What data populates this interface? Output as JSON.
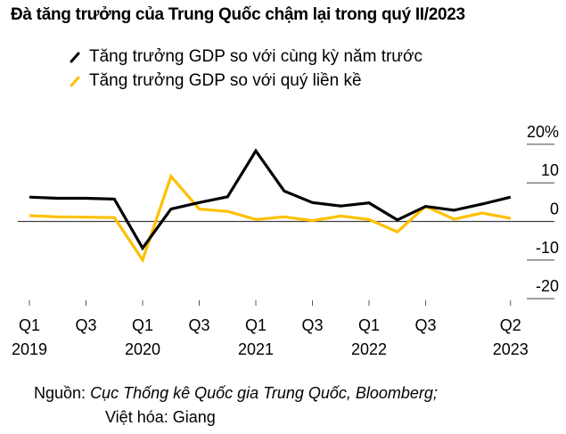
{
  "colors": {
    "yoy": "#000000",
    "qoq": "#FFC000",
    "zero_line": "#404040",
    "grid_tick": "#808080"
  },
  "footer": {
    "source_label": "Nguồn:",
    "source_text": "Cục Thống kê Quốc gia Trung Quốc, Bloomberg;",
    "credit": "Việt hóa: Giang"
  },
  "chart_data": {
    "type": "line",
    "title": "Đà tăng trưởng của Trung Quốc chậm lại trong quý II/2023",
    "xlabel": "",
    "ylabel": "",
    "ylim": [
      -20,
      20
    ],
    "yticks": [
      20,
      10,
      0,
      -10,
      -20
    ],
    "ytick_labels": [
      "20%",
      "10",
      "0",
      "-10",
      "-20"
    ],
    "y_axis_side": "right",
    "grid": false,
    "legend_position": "top-left",
    "x": [
      "Q1 2019",
      "Q2 2019",
      "Q3 2019",
      "Q4 2019",
      "Q1 2020",
      "Q2 2020",
      "Q3 2020",
      "Q4 2020",
      "Q1 2021",
      "Q2 2021",
      "Q3 2021",
      "Q4 2021",
      "Q1 2022",
      "Q2 2022",
      "Q3 2022",
      "Q4 2022",
      "Q1 2023",
      "Q2 2023"
    ],
    "xtick_labels": [
      {
        "index": 0,
        "line1": "Q1",
        "line2": "2019"
      },
      {
        "index": 2,
        "line1": "Q3",
        "line2": ""
      },
      {
        "index": 4,
        "line1": "Q1",
        "line2": "2020"
      },
      {
        "index": 6,
        "line1": "Q3",
        "line2": ""
      },
      {
        "index": 8,
        "line1": "Q1",
        "line2": "2021"
      },
      {
        "index": 10,
        "line1": "Q3",
        "line2": ""
      },
      {
        "index": 12,
        "line1": "Q1",
        "line2": "2022"
      },
      {
        "index": 14,
        "line1": "Q3",
        "line2": ""
      },
      {
        "index": 17,
        "line1": "Q2",
        "line2": "2023"
      }
    ],
    "series": [
      {
        "name": "Tăng trưởng GDP so với cùng kỳ năm trước",
        "key": "yoy",
        "values": [
          6.3,
          6.0,
          6.0,
          5.8,
          -6.9,
          3.2,
          4.9,
          6.4,
          18.3,
          7.9,
          4.9,
          4.0,
          4.8,
          0.4,
          3.9,
          2.9,
          4.5,
          6.3
        ]
      },
      {
        "name": "Tăng trưởng GDP so với quý liền kề",
        "key": "qoq",
        "values": [
          1.5,
          1.2,
          1.1,
          1.0,
          -10.0,
          11.7,
          3.2,
          2.6,
          0.5,
          1.2,
          0.2,
          1.4,
          0.5,
          -2.7,
          3.9,
          0.6,
          2.2,
          0.8
        ]
      }
    ]
  }
}
